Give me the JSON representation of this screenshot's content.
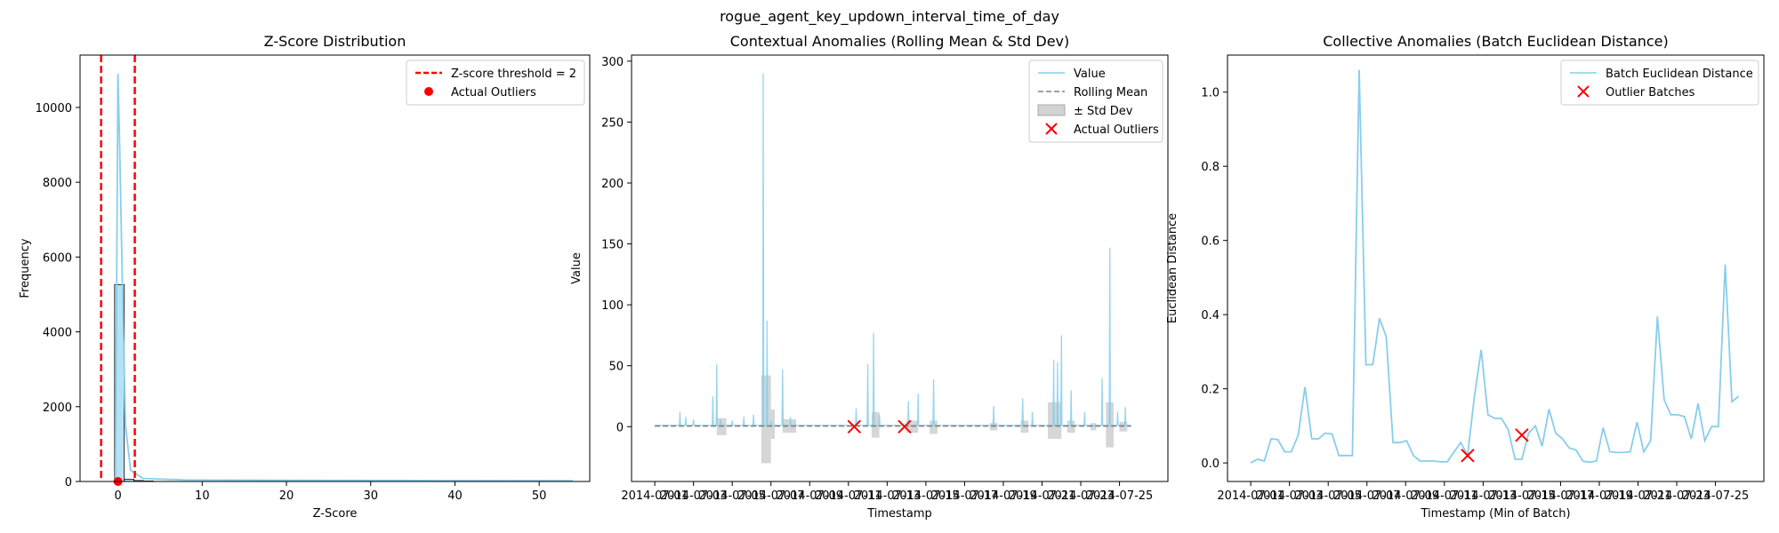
{
  "suptitle": "rogue_agent_key_updown_interval_time_of_day",
  "chart_data": [
    {
      "type": "histogram",
      "title": "Z-Score Distribution",
      "xlabel": "Z-Score",
      "ylabel": "Frequency",
      "xlim": [
        -4.5,
        56
      ],
      "ylim": [
        0,
        11400
      ],
      "xticks": [
        0,
        10,
        20,
        30,
        40,
        50
      ],
      "yticks": [
        0,
        2000,
        4000,
        6000,
        8000,
        10000
      ],
      "bars": [
        {
          "x0": -0.4,
          "x1": 0.75,
          "count": 5260
        },
        {
          "x0": 0.75,
          "x1": 1.9,
          "count": 60
        },
        {
          "x0": 1.9,
          "x1": 3.0,
          "count": 25
        },
        {
          "x0": 3.0,
          "x1": 4.2,
          "count": 12
        }
      ],
      "kde": [
        [
          -0.3,
          0
        ],
        [
          0.0,
          10900
        ],
        [
          0.2,
          9000
        ],
        [
          0.5,
          5500
        ],
        [
          0.9,
          1500
        ],
        [
          1.5,
          300
        ],
        [
          3,
          80
        ],
        [
          8,
          40
        ],
        [
          20,
          30
        ],
        [
          35,
          25
        ],
        [
          54,
          20
        ]
      ],
      "thresholds": [
        -2,
        2
      ],
      "outliers": [
        0
      ],
      "legend": [
        {
          "label": "Z-score threshold = 2",
          "style": "dashed-line",
          "color": "#ff0000"
        },
        {
          "label": "Actual Outliers",
          "style": "dot",
          "color": "#ff0000"
        }
      ],
      "colors": {
        "hist": "#87ceeb",
        "kde": "#87ceeb"
      },
      "grid": false,
      "legend_position": "top-right"
    },
    {
      "type": "line",
      "title": "Contextual Anomalies (Rolling Mean & Std Dev)",
      "xlabel": "Timestamp",
      "ylabel": "Value",
      "xlim": [
        -1.2,
        26.5
      ],
      "ylim": [
        -45,
        305
      ],
      "xticks": [
        0,
        2,
        4,
        6,
        8,
        10,
        12,
        14,
        16,
        18,
        20,
        22,
        24
      ],
      "xtick_labels": [
        "2014-07-01",
        "2014-07-03",
        "2014-07-05",
        "2014-07-07",
        "2014-07-09",
        "2014-07-11",
        "2014-07-13",
        "2014-07-15",
        "2014-07-17",
        "2014-07-19",
        "2014-07-21",
        "2014-07-23",
        "2014-07-25"
      ],
      "yticks": [
        0,
        50,
        100,
        150,
        200,
        250,
        300
      ],
      "spikes": [
        [
          1.3,
          12
        ],
        [
          1.6,
          8
        ],
        [
          2.0,
          6
        ],
        [
          3.0,
          25
        ],
        [
          3.2,
          51
        ],
        [
          3.4,
          6
        ],
        [
          4.0,
          5
        ],
        [
          4.6,
          8
        ],
        [
          5.1,
          10
        ],
        [
          5.6,
          290
        ],
        [
          5.8,
          87
        ],
        [
          6.0,
          5
        ],
        [
          6.6,
          47
        ],
        [
          7.0,
          8
        ],
        [
          10.4,
          15
        ],
        [
          11.0,
          51
        ],
        [
          11.3,
          77
        ],
        [
          11.6,
          10
        ],
        [
          13.1,
          21
        ],
        [
          13.6,
          27
        ],
        [
          14.4,
          39
        ],
        [
          17.5,
          17
        ],
        [
          19.0,
          23
        ],
        [
          19.5,
          12
        ],
        [
          20.6,
          55
        ],
        [
          20.8,
          53
        ],
        [
          21.0,
          75
        ],
        [
          21.5,
          30
        ],
        [
          22.2,
          12
        ],
        [
          23.1,
          40
        ],
        [
          23.5,
          147
        ],
        [
          23.9,
          12
        ],
        [
          24.3,
          16
        ]
      ],
      "std_bands": [
        [
          3.2,
          3.7,
          -7,
          7
        ],
        [
          5.5,
          6.0,
          -30,
          42
        ],
        [
          6.0,
          6.2,
          -10,
          14
        ],
        [
          6.6,
          7.3,
          -5,
          6
        ],
        [
          11.2,
          11.6,
          -9,
          12
        ],
        [
          13.0,
          13.6,
          -5,
          5
        ],
        [
          14.2,
          14.6,
          -6,
          5
        ],
        [
          17.3,
          17.7,
          -3,
          3
        ],
        [
          18.9,
          19.3,
          -5,
          5
        ],
        [
          20.3,
          21.0,
          -10,
          20
        ],
        [
          21.3,
          21.7,
          -5,
          5
        ],
        [
          22.5,
          22.8,
          -3,
          3
        ],
        [
          23.3,
          23.7,
          -17,
          20
        ],
        [
          24.0,
          24.4,
          -4,
          4
        ]
      ],
      "outliers": [
        [
          10.3,
          0
        ],
        [
          12.9,
          0
        ]
      ],
      "legend": [
        {
          "label": "Value",
          "style": "line",
          "color": "#87ceeb"
        },
        {
          "label": "Rolling Mean",
          "style": "dashed-line",
          "color": "#808080"
        },
        {
          "label": "± Std Dev",
          "style": "patch",
          "color": "#d3d3d3"
        },
        {
          "label": "Actual Outliers",
          "style": "x",
          "color": "#ff0000"
        }
      ],
      "grid": false,
      "legend_position": "top-right"
    },
    {
      "type": "line",
      "title": "Collective Anomalies (Batch Euclidean Distance)",
      "xlabel": "Timestamp (Min of Batch)",
      "ylabel": "Euclidean Distance",
      "xlim": [
        -1.2,
        26.5
      ],
      "ylim": [
        -0.05,
        1.1
      ],
      "xticks": [
        0,
        2,
        4,
        6,
        8,
        10,
        12,
        14,
        16,
        18,
        20,
        22,
        24
      ],
      "xtick_labels": [
        "2014-07-01",
        "2014-07-03",
        "2014-07-05",
        "2014-07-07",
        "2014-07-09",
        "2014-07-11",
        "2014-07-13",
        "2014-07-15",
        "2014-07-17",
        "2014-07-19",
        "2014-07-21",
        "2014-07-23",
        "2014-07-25"
      ],
      "yticks": [
        0.0,
        0.2,
        0.4,
        0.6,
        0.8,
        1.0
      ],
      "ytick_labels": [
        "0.0",
        "0.2",
        "0.4",
        "0.6",
        "0.8",
        "1.0"
      ],
      "series": [
        {
          "name": "Batch Euclidean Distance",
          "color": "#87ceeb",
          "points": [
            [
              0,
              0.0
            ],
            [
              0.35,
              0.01
            ],
            [
              0.7,
              0.005
            ],
            [
              1.05,
              0.065
            ],
            [
              1.4,
              0.063
            ],
            [
              1.75,
              0.03
            ],
            [
              2.1,
              0.03
            ],
            [
              2.45,
              0.075
            ],
            [
              2.8,
              0.205
            ],
            [
              3.15,
              0.065
            ],
            [
              3.5,
              0.065
            ],
            [
              3.85,
              0.08
            ],
            [
              4.2,
              0.078
            ],
            [
              4.55,
              0.02
            ],
            [
              4.9,
              0.02
            ],
            [
              5.25,
              0.02
            ],
            [
              5.6,
              1.06
            ],
            [
              5.95,
              0.265
            ],
            [
              6.3,
              0.265
            ],
            [
              6.65,
              0.39
            ],
            [
              7.0,
              0.34
            ],
            [
              7.35,
              0.055
            ],
            [
              7.7,
              0.055
            ],
            [
              8.05,
              0.06
            ],
            [
              8.4,
              0.02
            ],
            [
              8.75,
              0.005
            ],
            [
              9.1,
              0.005
            ],
            [
              9.45,
              0.005
            ],
            [
              9.8,
              0.003
            ],
            [
              10.15,
              0.003
            ],
            [
              10.5,
              0.03
            ],
            [
              10.85,
              0.055
            ],
            [
              11.2,
              0.02
            ],
            [
              11.55,
              0.18
            ],
            [
              11.9,
              0.305
            ],
            [
              12.25,
              0.13
            ],
            [
              12.6,
              0.12
            ],
            [
              12.95,
              0.12
            ],
            [
              13.3,
              0.09
            ],
            [
              13.65,
              0.01
            ],
            [
              14.0,
              0.01
            ],
            [
              14.35,
              0.08
            ],
            [
              14.7,
              0.1
            ],
            [
              15.05,
              0.045
            ],
            [
              15.4,
              0.145
            ],
            [
              15.75,
              0.08
            ],
            [
              16.1,
              0.065
            ],
            [
              16.45,
              0.04
            ],
            [
              16.8,
              0.035
            ],
            [
              17.15,
              0.005
            ],
            [
              17.5,
              0.002
            ],
            [
              17.85,
              0.005
            ],
            [
              18.2,
              0.095
            ],
            [
              18.55,
              0.03
            ],
            [
              18.9,
              0.028
            ],
            [
              19.25,
              0.028
            ],
            [
              19.6,
              0.03
            ],
            [
              19.95,
              0.11
            ],
            [
              20.3,
              0.03
            ],
            [
              20.65,
              0.06
            ],
            [
              21.0,
              0.395
            ],
            [
              21.35,
              0.17
            ],
            [
              21.7,
              0.13
            ],
            [
              22.05,
              0.13
            ],
            [
              22.4,
              0.125
            ],
            [
              22.75,
              0.065
            ],
            [
              23.1,
              0.16
            ],
            [
              23.45,
              0.06
            ],
            [
              23.8,
              0.098
            ],
            [
              24.15,
              0.098
            ],
            [
              24.5,
              0.535
            ],
            [
              24.85,
              0.165
            ],
            [
              25.2,
              0.18
            ]
          ]
        }
      ],
      "outliers": [
        [
          11.2,
          0.02
        ],
        [
          14.0,
          0.075
        ]
      ],
      "legend": [
        {
          "label": "Batch Euclidean Distance",
          "style": "line",
          "color": "#87ceeb"
        },
        {
          "label": "Outlier Batches",
          "style": "x",
          "color": "#ff0000"
        }
      ],
      "grid": false,
      "legend_position": "top-right"
    }
  ]
}
